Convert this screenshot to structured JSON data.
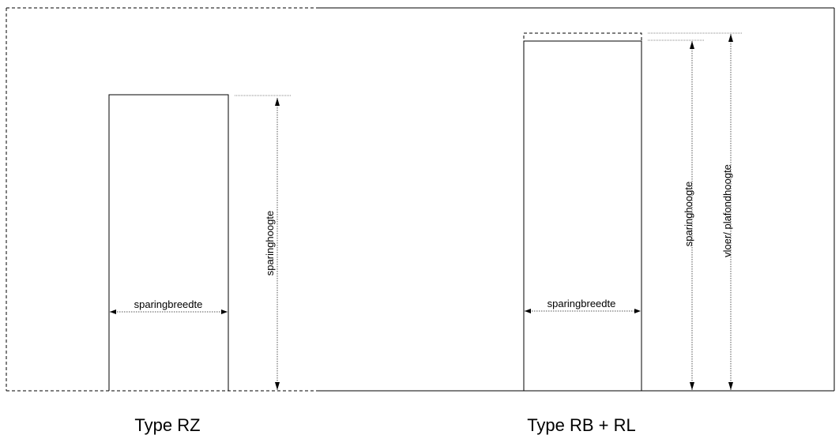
{
  "labels": {
    "rz_width": "sparingbreedte",
    "rz_height": "sparinghoogte",
    "rz_type": "Type RZ",
    "rb_width": "sparingbreedte",
    "rb_height": "sparinghoogte",
    "rb_floor_ceiling": "vloer/ plafondhoogte",
    "rb_type": "Type RB + RL"
  }
}
